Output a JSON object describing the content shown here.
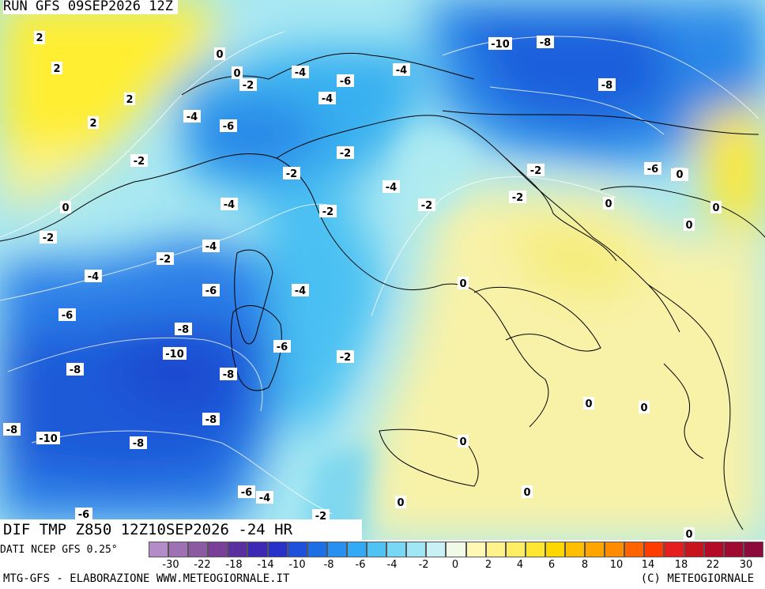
{
  "header": {
    "run_title": "RUN GFS 09SEP2026 12Z",
    "field_title": "DIF TMP Z850 12Z10SEP2026 -24 HR",
    "source": "DATI NCEP GFS 0.25°"
  },
  "footer": {
    "left": "MTG-GFS - ELABORAZIONE WWW.METEOGIORNALE.IT",
    "right": "(C) METEOGIORNALE"
  },
  "colorbar": {
    "tick_labels": [
      "-30",
      "-22",
      "-18",
      "-14",
      "-10",
      "-8",
      "-6",
      "-4",
      "-2",
      "0",
      "2",
      "4",
      "6",
      "8",
      "10",
      "14",
      "18",
      "22",
      "30"
    ],
    "colors": [
      "#b48cc8",
      "#a070b4",
      "#8c5aa0",
      "#7a3f98",
      "#5a2fa0",
      "#3c28b4",
      "#2832c8",
      "#1e50dc",
      "#1e6ee6",
      "#2890f0",
      "#32aaf5",
      "#50c3f5",
      "#78d7f5",
      "#a0e6f5",
      "#c8f0f5",
      "#f0fae6",
      "#fff8b4",
      "#fff28c",
      "#ffee64",
      "#ffe632",
      "#ffd700",
      "#ffbe00",
      "#ffa500",
      "#ff8c00",
      "#ff6400",
      "#ff3c00",
      "#e61e1e",
      "#c8141e",
      "#b40a28",
      "#a00a32",
      "#8c0a3c"
    ]
  },
  "contour_labels": [
    {
      "text": "2"
    },
    {
      "text": "2"
    },
    {
      "text": "2"
    },
    {
      "text": "2"
    },
    {
      "text": "2"
    },
    {
      "text": "0"
    },
    {
      "text": "0"
    },
    {
      "text": "-2"
    },
    {
      "text": "-4"
    },
    {
      "text": "-6"
    },
    {
      "text": "-4"
    },
    {
      "text": "-4"
    },
    {
      "text": "-10"
    },
    {
      "text": "-8"
    },
    {
      "text": "-8"
    },
    {
      "text": "-4"
    },
    {
      "text": "-6"
    },
    {
      "text": "-2"
    },
    {
      "text": "-2"
    },
    {
      "text": "-2"
    },
    {
      "text": "-4"
    },
    {
      "text": "-2"
    },
    {
      "text": "-2"
    },
    {
      "text": "-4"
    },
    {
      "text": "0"
    },
    {
      "text": "-2"
    },
    {
      "text": "-2"
    },
    {
      "text": "-4"
    },
    {
      "text": "-4"
    },
    {
      "text": "-6"
    },
    {
      "text": "-4"
    },
    {
      "text": "-6"
    },
    {
      "text": "-8"
    },
    {
      "text": "-6"
    },
    {
      "text": "-10"
    },
    {
      "text": "-8"
    },
    {
      "text": "-2"
    },
    {
      "text": "-8"
    },
    {
      "text": "-8"
    },
    {
      "text": "-10"
    },
    {
      "text": "-8"
    },
    {
      "text": "-8"
    },
    {
      "text": "-6"
    },
    {
      "text": "-4"
    },
    {
      "text": "-6"
    },
    {
      "text": "-2"
    },
    {
      "text": "-2"
    },
    {
      "text": "-6"
    },
    {
      "text": "-4"
    },
    {
      "text": "-2"
    },
    {
      "text": "0"
    },
    {
      "text": "0"
    },
    {
      "text": "0"
    },
    {
      "text": "0"
    },
    {
      "text": "0"
    },
    {
      "text": "0"
    },
    {
      "text": "0"
    },
    {
      "text": "0"
    },
    {
      "text": "0"
    },
    {
      "text": "0"
    },
    {
      "text": "0"
    }
  ]
}
